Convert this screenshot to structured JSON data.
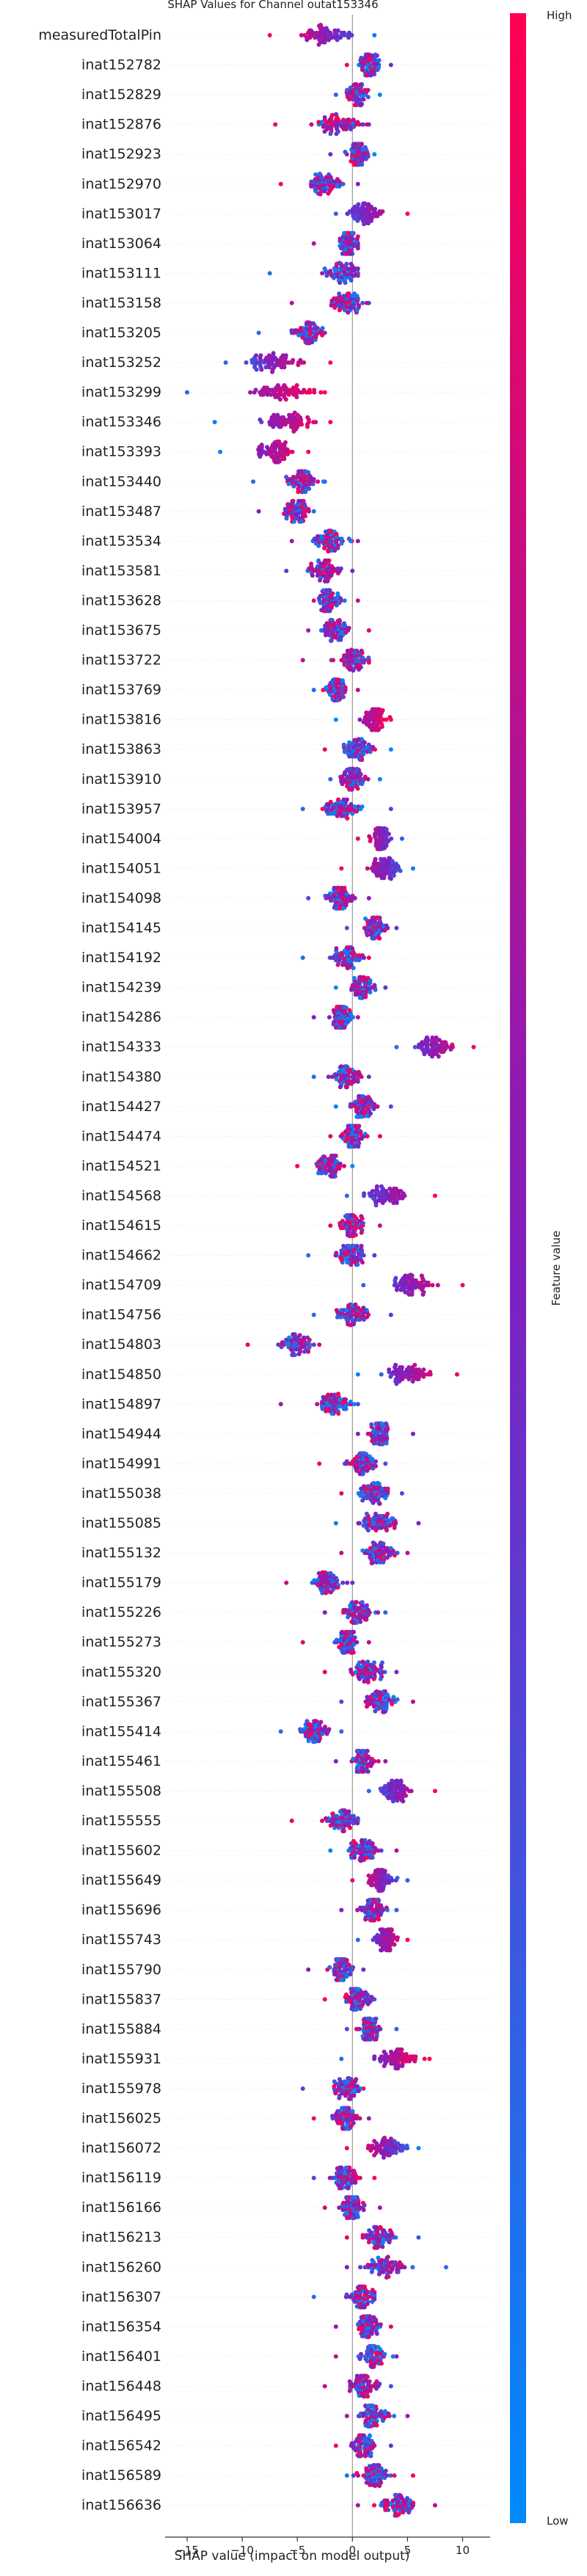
{
  "chart_data": {
    "type": "scatter",
    "subtype": "shap-beeswarm",
    "title": "SHAP Values for Channel outat153346",
    "xlabel": "SHAP value (impact on model output)",
    "xlim": [
      -17,
      12.5
    ],
    "xticks": [
      -15,
      -10,
      -5,
      0,
      5,
      10
    ],
    "xtick_labels": [
      "−15",
      "−10",
      "−5",
      "0",
      "5",
      "10"
    ],
    "colorbar": {
      "label": "Feature value",
      "high": "High",
      "low": "Low",
      "color_low": "#008afb",
      "color_high": "#ff0052"
    },
    "grid": false,
    "features": [
      {
        "name": "measuredTotalPin",
        "lo": -7.5,
        "hi": 2.0,
        "center": -2.5,
        "corr": -1
      },
      {
        "name": "inat152782",
        "lo": -0.5,
        "hi": 3.5,
        "center": 1.5,
        "corr": 0
      },
      {
        "name": "inat152829",
        "lo": -1.5,
        "hi": 2.5,
        "center": 0.5,
        "corr": 0
      },
      {
        "name": "inat152876",
        "lo": -7.0,
        "hi": 1.5,
        "center": -1.0,
        "corr": 0
      },
      {
        "name": "inat152923",
        "lo": -2.0,
        "hi": 2.0,
        "center": 0.5,
        "corr": 0
      },
      {
        "name": "inat152970",
        "lo": -6.5,
        "hi": 0.5,
        "center": -2.5,
        "corr": 0
      },
      {
        "name": "inat153017",
        "lo": -1.5,
        "hi": 5.0,
        "center": 1.0,
        "corr": 1
      },
      {
        "name": "inat153064",
        "lo": -3.5,
        "hi": 0.5,
        "center": -0.5,
        "corr": 0
      },
      {
        "name": "inat153111",
        "lo": -7.5,
        "hi": 0.5,
        "center": -1.0,
        "corr": 0
      },
      {
        "name": "inat153158",
        "lo": -5.5,
        "hi": 1.5,
        "center": -0.5,
        "corr": 0
      },
      {
        "name": "inat153205",
        "lo": -8.5,
        "hi": -2.5,
        "center": -4.0,
        "corr": 0
      },
      {
        "name": "inat153252",
        "lo": -11.5,
        "hi": -2.0,
        "center": -7.0,
        "corr": 1
      },
      {
        "name": "inat153299",
        "lo": -15.0,
        "hi": -2.5,
        "center": -6.0,
        "corr": 1
      },
      {
        "name": "inat153346",
        "lo": -12.5,
        "hi": -2.0,
        "center": -6.0,
        "corr": 1
      },
      {
        "name": "inat153393",
        "lo": -12.0,
        "hi": -4.0,
        "center": -7.0,
        "corr": 1
      },
      {
        "name": "inat153440",
        "lo": -9.0,
        "hi": -2.5,
        "center": -4.5,
        "corr": 0
      },
      {
        "name": "inat153487",
        "lo": -8.5,
        "hi": -3.5,
        "center": -5.0,
        "corr": 0
      },
      {
        "name": "inat153534",
        "lo": -5.5,
        "hi": 0.5,
        "center": -2.0,
        "corr": 0
      },
      {
        "name": "inat153581",
        "lo": -6.0,
        "hi": 0.0,
        "center": -2.5,
        "corr": 0
      },
      {
        "name": "inat153628",
        "lo": -3.5,
        "hi": 0.5,
        "center": -2.0,
        "corr": 0
      },
      {
        "name": "inat153675",
        "lo": -4.0,
        "hi": 1.5,
        "center": -1.5,
        "corr": 0
      },
      {
        "name": "inat153722",
        "lo": -4.5,
        "hi": 1.5,
        "center": 0.0,
        "corr": 0
      },
      {
        "name": "inat153769",
        "lo": -3.5,
        "hi": 0.5,
        "center": -1.5,
        "corr": 0
      },
      {
        "name": "inat153816",
        "lo": -1.5,
        "hi": 3.5,
        "center": 2.0,
        "corr": 1
      },
      {
        "name": "inat153863",
        "lo": -2.5,
        "hi": 3.5,
        "center": 0.5,
        "corr": 0
      },
      {
        "name": "inat153910",
        "lo": -2.0,
        "hi": 2.5,
        "center": 0.0,
        "corr": 0
      },
      {
        "name": "inat153957",
        "lo": -4.5,
        "hi": 3.5,
        "center": -1.0,
        "corr": 0
      },
      {
        "name": "inat154004",
        "lo": 0.5,
        "hi": 4.5,
        "center": 2.5,
        "corr": -1
      },
      {
        "name": "inat154051",
        "lo": -1.0,
        "hi": 5.5,
        "center": 3.0,
        "corr": -1
      },
      {
        "name": "inat154098",
        "lo": -4.0,
        "hi": 1.5,
        "center": -1.0,
        "corr": 0
      },
      {
        "name": "inat154145",
        "lo": -0.5,
        "hi": 4.0,
        "center": 2.0,
        "corr": 0
      },
      {
        "name": "inat154192",
        "lo": -4.5,
        "hi": 1.5,
        "center": -0.5,
        "corr": 0
      },
      {
        "name": "inat154239",
        "lo": -1.5,
        "hi": 3.0,
        "center": 1.0,
        "corr": 0
      },
      {
        "name": "inat154286",
        "lo": -3.5,
        "hi": 0.5,
        "center": -1.0,
        "corr": 0
      },
      {
        "name": "inat154333",
        "lo": 4.0,
        "hi": 11.0,
        "center": 7.5,
        "corr": 1
      },
      {
        "name": "inat154380",
        "lo": -3.5,
        "hi": 1.5,
        "center": -0.5,
        "corr": 0
      },
      {
        "name": "inat154427",
        "lo": -1.5,
        "hi": 3.5,
        "center": 1.0,
        "corr": 0
      },
      {
        "name": "inat154474",
        "lo": -2.0,
        "hi": 2.5,
        "center": 0.0,
        "corr": 0
      },
      {
        "name": "inat154521",
        "lo": -5.0,
        "hi": 0.0,
        "center": -2.0,
        "corr": 0
      },
      {
        "name": "inat154568",
        "lo": -0.5,
        "hi": 7.5,
        "center": 3.0,
        "corr": 1
      },
      {
        "name": "inat154615",
        "lo": -2.0,
        "hi": 2.5,
        "center": 0.0,
        "corr": 0
      },
      {
        "name": "inat154662",
        "lo": -4.0,
        "hi": 2.0,
        "center": 0.0,
        "corr": 0
      },
      {
        "name": "inat154709",
        "lo": 1.0,
        "hi": 10.0,
        "center": 5.5,
        "corr": 1
      },
      {
        "name": "inat154756",
        "lo": -3.5,
        "hi": 3.5,
        "center": 0.0,
        "corr": 0
      },
      {
        "name": "inat154803",
        "lo": -9.5,
        "hi": -3.0,
        "center": -5.0,
        "corr": 0
      },
      {
        "name": "inat154850",
        "lo": 0.5,
        "hi": 9.5,
        "center": 5.0,
        "corr": 1
      },
      {
        "name": "inat154897",
        "lo": -6.5,
        "hi": 0.5,
        "center": -1.5,
        "corr": 0
      },
      {
        "name": "inat154944",
        "lo": 0.5,
        "hi": 5.5,
        "center": 2.5,
        "corr": 0
      },
      {
        "name": "inat154991",
        "lo": -3.0,
        "hi": 3.0,
        "center": 1.0,
        "corr": 0
      },
      {
        "name": "inat155038",
        "lo": -1.0,
        "hi": 4.5,
        "center": 2.0,
        "corr": 0
      },
      {
        "name": "inat155085",
        "lo": -1.5,
        "hi": 6.0,
        "center": 2.5,
        "corr": 0
      },
      {
        "name": "inat155132",
        "lo": -1.0,
        "hi": 5.0,
        "center": 2.5,
        "corr": 0
      },
      {
        "name": "inat155179",
        "lo": -6.0,
        "hi": 0.0,
        "center": -2.5,
        "corr": 0
      },
      {
        "name": "inat155226",
        "lo": -2.5,
        "hi": 3.0,
        "center": 0.5,
        "corr": 0
      },
      {
        "name": "inat155273",
        "lo": -4.5,
        "hi": 1.5,
        "center": -0.5,
        "corr": 0
      },
      {
        "name": "inat155320",
        "lo": -2.5,
        "hi": 4.0,
        "center": 1.5,
        "corr": 0
      },
      {
        "name": "inat155367",
        "lo": -1.0,
        "hi": 5.5,
        "center": 2.5,
        "corr": 0
      },
      {
        "name": "inat155414",
        "lo": -6.5,
        "hi": -1.0,
        "center": -3.5,
        "corr": 0
      },
      {
        "name": "inat155461",
        "lo": -1.5,
        "hi": 3.0,
        "center": 1.0,
        "corr": 0
      },
      {
        "name": "inat155508",
        "lo": 1.5,
        "hi": 7.5,
        "center": 4.0,
        "corr": 1
      },
      {
        "name": "inat155555",
        "lo": -5.5,
        "hi": 0.5,
        "center": -1.0,
        "corr": 0
      },
      {
        "name": "inat155602",
        "lo": -2.0,
        "hi": 4.0,
        "center": 1.0,
        "corr": 0
      },
      {
        "name": "inat155649",
        "lo": 0.0,
        "hi": 5.0,
        "center": 2.5,
        "corr": -1
      },
      {
        "name": "inat155696",
        "lo": -1.0,
        "hi": 4.0,
        "center": 2.0,
        "corr": 0
      },
      {
        "name": "inat155743",
        "lo": 0.5,
        "hi": 5.0,
        "center": 3.0,
        "corr": 1
      },
      {
        "name": "inat155790",
        "lo": -4.0,
        "hi": 1.0,
        "center": -1.0,
        "corr": 0
      },
      {
        "name": "inat155837",
        "lo": -2.5,
        "hi": 2.0,
        "center": 0.5,
        "corr": 0
      },
      {
        "name": "inat155884",
        "lo": -0.5,
        "hi": 4.0,
        "center": 1.5,
        "corr": 0
      },
      {
        "name": "inat155931",
        "lo": -1.0,
        "hi": 7.0,
        "center": 4.0,
        "corr": 1
      },
      {
        "name": "inat155978",
        "lo": -4.5,
        "hi": 1.0,
        "center": -0.5,
        "corr": 0
      },
      {
        "name": "inat156025",
        "lo": -3.5,
        "hi": 1.5,
        "center": -0.5,
        "corr": 0
      },
      {
        "name": "inat156072",
        "lo": -0.5,
        "hi": 6.0,
        "center": 3.0,
        "corr": -1
      },
      {
        "name": "inat156119",
        "lo": -3.5,
        "hi": 2.0,
        "center": -0.5,
        "corr": 0
      },
      {
        "name": "inat156166",
        "lo": -2.5,
        "hi": 2.5,
        "center": 0.0,
        "corr": 0
      },
      {
        "name": "inat156213",
        "lo": -0.5,
        "hi": 6.0,
        "center": 2.5,
        "corr": 0
      },
      {
        "name": "inat156260",
        "lo": -0.5,
        "hi": 8.5,
        "center": 3.0,
        "corr": 0
      },
      {
        "name": "inat156307",
        "lo": -3.5,
        "hi": 2.0,
        "center": 1.0,
        "corr": 0
      },
      {
        "name": "inat156354",
        "lo": -1.5,
        "hi": 3.5,
        "center": 1.5,
        "corr": 0
      },
      {
        "name": "inat156401",
        "lo": -1.5,
        "hi": 4.0,
        "center": 2.0,
        "corr": 0
      },
      {
        "name": "inat156448",
        "lo": -2.5,
        "hi": 3.5,
        "center": 1.0,
        "corr": 0
      },
      {
        "name": "inat156495",
        "lo": -0.5,
        "hi": 5.0,
        "center": 2.0,
        "corr": 0
      },
      {
        "name": "inat156542",
        "lo": -1.5,
        "hi": 3.5,
        "center": 1.0,
        "corr": 0
      },
      {
        "name": "inat156589",
        "lo": -0.5,
        "hi": 5.5,
        "center": 2.0,
        "corr": 0
      },
      {
        "name": "inat156636",
        "lo": 0.5,
        "hi": 7.5,
        "center": 4.0,
        "corr": 0
      }
    ]
  }
}
